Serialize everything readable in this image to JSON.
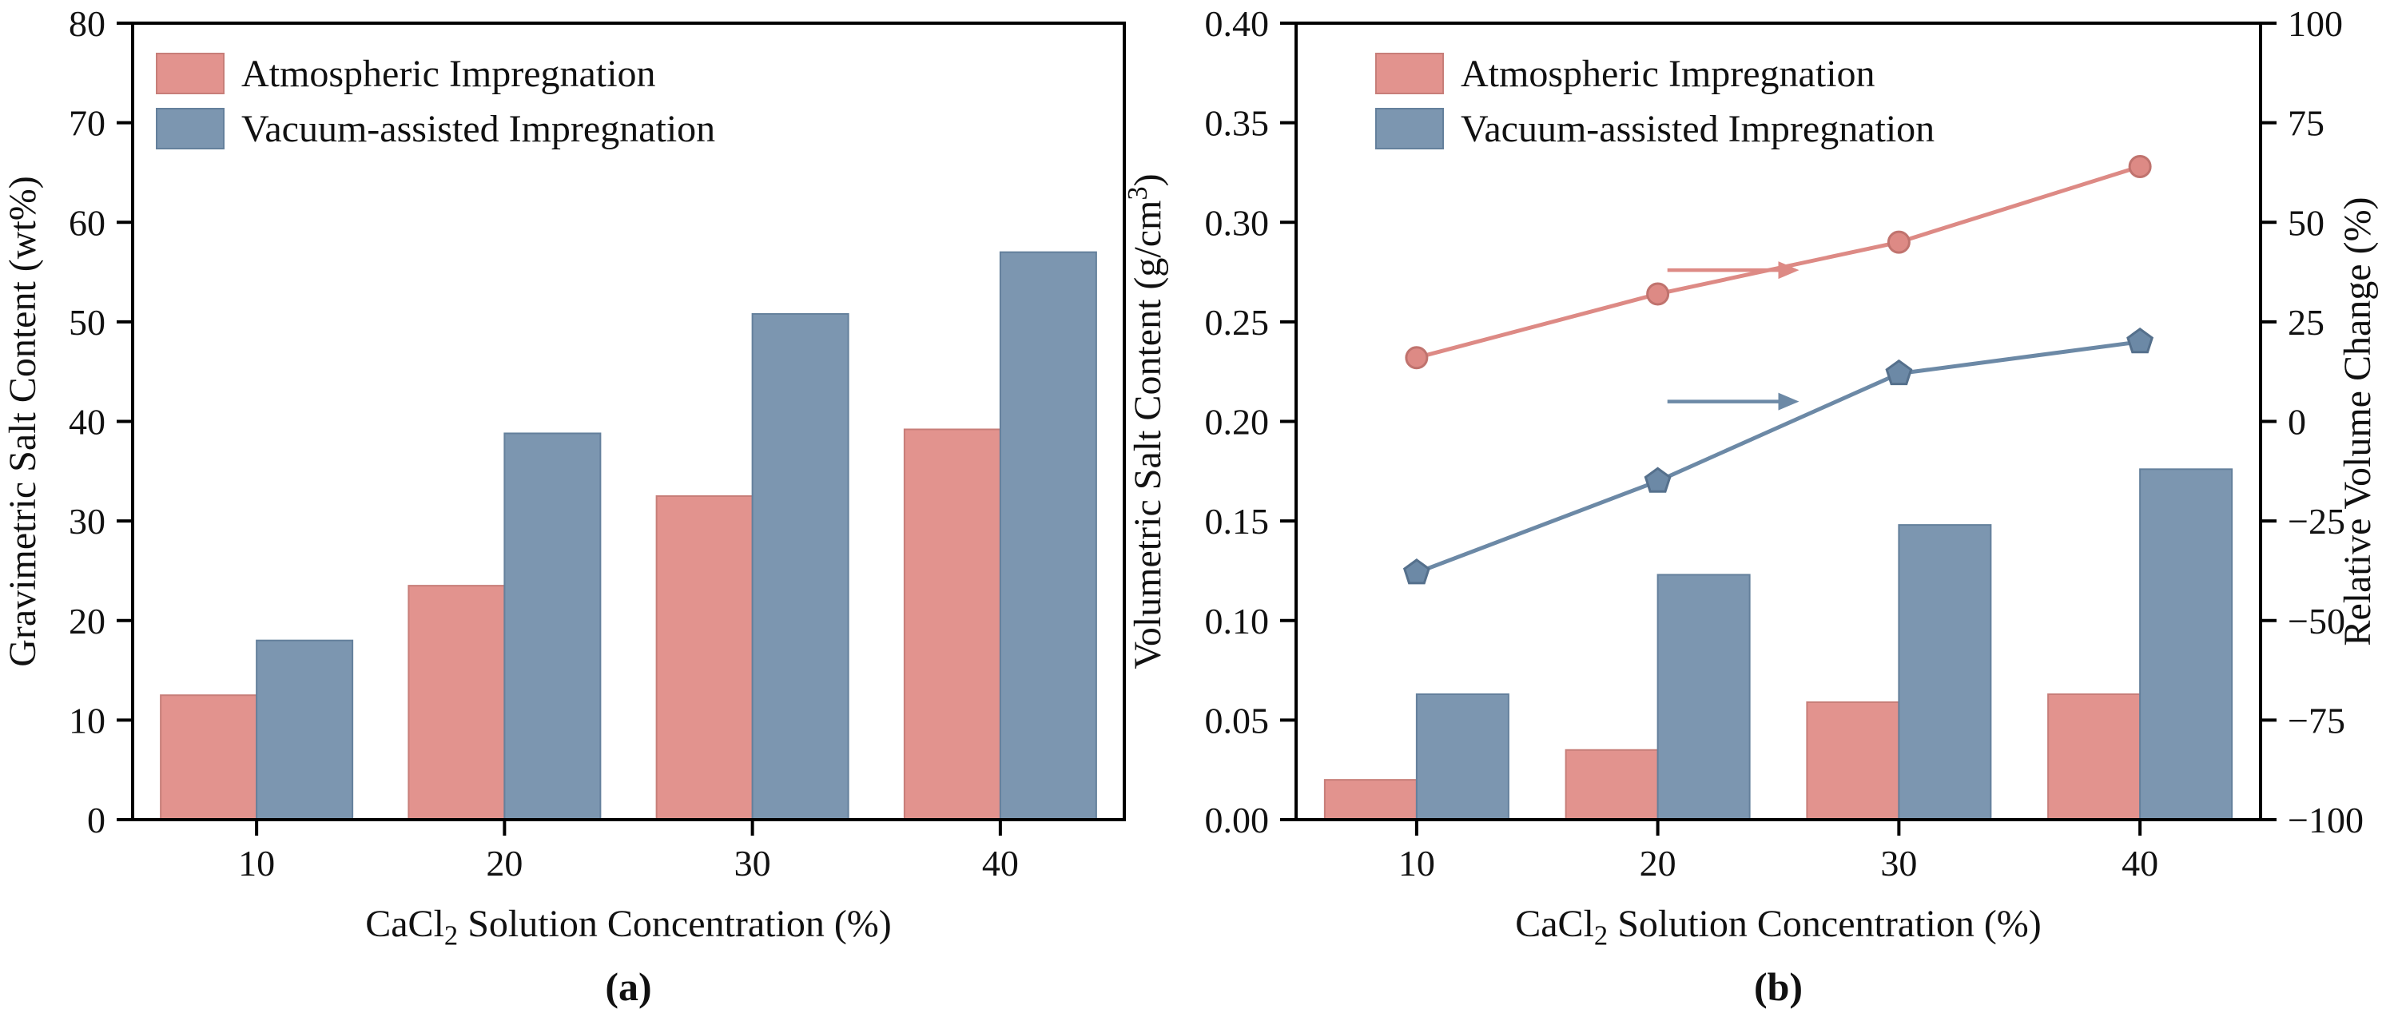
{
  "chart_data": [
    {
      "panel": "a",
      "type": "bar",
      "panel_label": "(a)",
      "xlabel": [
        {
          "t": "CaCl"
        },
        {
          "t": "2",
          "sub": true
        },
        {
          "t": " Solution Concentration (%)"
        }
      ],
      "ylabel": [
        {
          "t": "Gravimetric Salt Content (wt%)"
        }
      ],
      "categories": [
        "10",
        "20",
        "30",
        "40"
      ],
      "ylim": [
        0,
        80
      ],
      "ytick_step": 10,
      "ytick_decimals": 0,
      "legend_position": "top-left",
      "series": [
        {
          "name": "Atmospheric Impregnation",
          "color": "#E2938E",
          "edge": "#C77E79",
          "values": [
            12.5,
            23.5,
            32.5,
            39.2
          ]
        },
        {
          "name": "Vacuum-assisted Impregnation",
          "color": "#7C96B0",
          "edge": "#64809C",
          "values": [
            18.0,
            38.8,
            50.8,
            57.0
          ]
        }
      ]
    },
    {
      "panel": "b",
      "type": "bar+line",
      "panel_label": "(b)",
      "xlabel": [
        {
          "t": "CaCl"
        },
        {
          "t": "2",
          "sub": true
        },
        {
          "t": " Solution Concentration (%)"
        }
      ],
      "ylabel": [
        {
          "t": "Volumetric Salt Content (g/cm"
        },
        {
          "t": "3",
          "sup": true
        },
        {
          "t": ")"
        }
      ],
      "y2label": [
        {
          "t": "Relative Volume Change (%)"
        }
      ],
      "categories": [
        "10",
        "20",
        "30",
        "40"
      ],
      "ylim": [
        0,
        0.4
      ],
      "ytick_step": 0.05,
      "ytick_decimals": 2,
      "y2lim": [
        -100,
        100
      ],
      "y2tick_step": 25,
      "y2tick_decimals": 0,
      "legend_position": "top-left",
      "series": [
        {
          "name": "Atmospheric Impregnation",
          "color": "#E2938E",
          "edge": "#C77E79",
          "values": [
            0.02,
            0.035,
            0.059,
            0.063
          ]
        },
        {
          "name": "Vacuum-assisted Impregnation",
          "color": "#7C96B0",
          "edge": "#64809C",
          "values": [
            0.063,
            0.123,
            0.148,
            0.176
          ]
        }
      ],
      "line_series": [
        {
          "name": "Atmospheric Impregnation",
          "axis": "right",
          "marker": "circle",
          "color": "#DD8A85",
          "edge": "#C0736E",
          "values": [
            16,
            32,
            45,
            64
          ]
        },
        {
          "name": "Vacuum-assisted Impregnation",
          "axis": "right",
          "marker": "pentagon",
          "color": "#6C89A6",
          "edge": "#55708C",
          "values": [
            -38,
            -15,
            12,
            20
          ]
        }
      ],
      "arrows": [
        {
          "points_to_axis": "right",
          "color": "#DD8A85",
          "y_right": 38,
          "fx1": 0.385,
          "fx2": 0.5
        },
        {
          "points_to_axis": "right",
          "color": "#6C89A6",
          "y_right": 5,
          "fx1": 0.385,
          "fx2": 0.5
        }
      ]
    }
  ]
}
